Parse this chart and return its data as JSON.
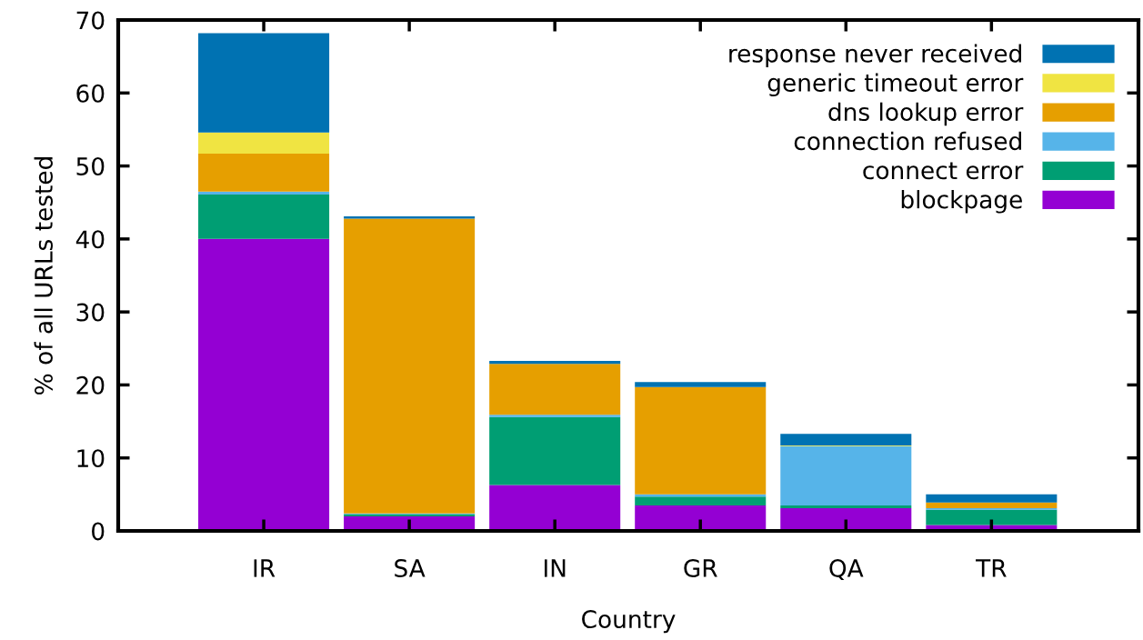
{
  "chart_data": {
    "type": "bar",
    "stacked": true,
    "xlabel": "Country",
    "ylabel": "% of all URLs tested",
    "categories": [
      "IR",
      "SA",
      "IN",
      "GR",
      "QA",
      "TR"
    ],
    "series": [
      {
        "name": "blockpage",
        "color": "#9400d3",
        "values": [
          40.0,
          2.0,
          6.3,
          3.5,
          3.1,
          0.8
        ]
      },
      {
        "name": "connect error",
        "color": "#009e73",
        "values": [
          6.1,
          0.3,
          9.3,
          1.2,
          0.4,
          2.1
        ]
      },
      {
        "name": "connection refused",
        "color": "#56b4e9",
        "values": [
          0.4,
          0.1,
          0.3,
          0.3,
          8.1,
          0.2
        ]
      },
      {
        "name": "dns lookup error",
        "color": "#e69f00",
        "values": [
          5.2,
          40.4,
          7.0,
          14.7,
          0.0,
          0.8
        ]
      },
      {
        "name": "generic timeout error",
        "color": "#f0e442",
        "values": [
          2.9,
          0.0,
          0.0,
          0.0,
          0.1,
          0.0
        ]
      },
      {
        "name": "response never received",
        "color": "#0072b2",
        "values": [
          13.6,
          0.3,
          0.4,
          0.7,
          1.6,
          1.1
        ]
      }
    ],
    "ylim": [
      0,
      70
    ],
    "yticks": [
      0,
      10,
      20,
      30,
      40,
      50,
      60,
      70
    ],
    "grid": false,
    "legend": "top right"
  }
}
